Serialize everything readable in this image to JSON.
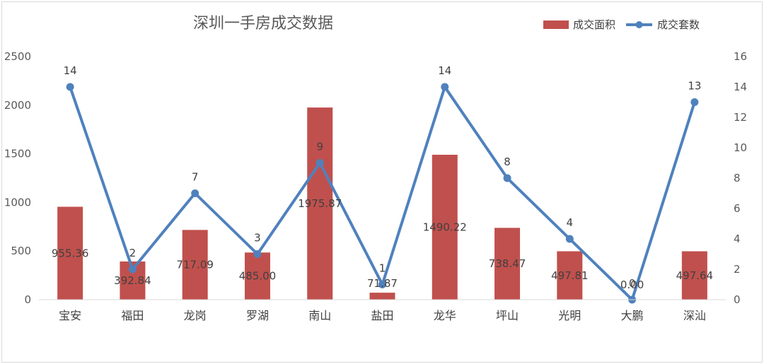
{
  "chart_data": {
    "type": "bar",
    "title": "深圳一手房成交数据",
    "categories": [
      "宝安",
      "福田",
      "龙岗",
      "罗湖",
      "南山",
      "盐田",
      "龙华",
      "坪山",
      "光明",
      "大鹏",
      "深汕"
    ],
    "series": [
      {
        "name": "成交面积",
        "type": "bar",
        "axis": "left",
        "color": "#c0504d",
        "values": [
          955.36,
          392.84,
          717.09,
          485.0,
          1975.87,
          71.87,
          1490.22,
          738.47,
          497.81,
          0,
          497.64
        ],
        "labels": [
          "955.36",
          "392.84",
          "717.09",
          "485.00",
          "1975.87",
          "71.87",
          "1490.22",
          "738.47",
          "497.81",
          "0.00",
          "497.64"
        ]
      },
      {
        "name": "成交套数",
        "type": "line",
        "axis": "right",
        "color": "#4f81bd",
        "values": [
          14,
          2,
          7,
          3,
          9,
          1,
          14,
          8,
          4,
          0,
          13
        ],
        "labels": [
          "14",
          "2",
          "7",
          "3",
          "9",
          "1",
          "14",
          "8",
          "4",
          "0",
          "13"
        ]
      }
    ],
    "y_left": {
      "ylim": [
        0,
        2500
      ],
      "ticks": [
        "0",
        "500",
        "1000",
        "1500",
        "2000",
        "2500"
      ]
    },
    "y_right": {
      "ylim": [
        0,
        16
      ],
      "ticks": [
        "0",
        "2",
        "4",
        "6",
        "8",
        "10",
        "12",
        "14",
        "16"
      ]
    },
    "grid": false,
    "legend": "top-right"
  }
}
